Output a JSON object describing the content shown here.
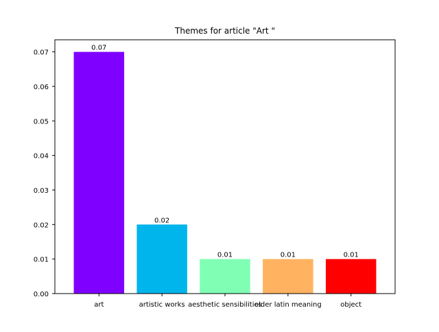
{
  "chart_data": {
    "type": "bar",
    "title": "Themes for article \"Art \"",
    "xlabel": "",
    "ylabel": "",
    "categories": [
      "art",
      "artistic works",
      "aesthetic sensibilities",
      "older latin meaning",
      "object"
    ],
    "values": [
      0.07,
      0.02,
      0.01,
      0.01,
      0.01
    ],
    "value_labels": [
      "0.07",
      "0.02",
      "0.01",
      "0.01",
      "0.01"
    ],
    "colors": [
      "#8000ff",
      "#00b5eb",
      "#80ffb4",
      "#ffb360",
      "#ff0000"
    ],
    "ylim": [
      0,
      0.0735
    ],
    "yticks": [
      0.0,
      0.01,
      0.02,
      0.03,
      0.04,
      0.05,
      0.06,
      0.07
    ],
    "ytick_labels": [
      "0.00",
      "0.01",
      "0.02",
      "0.03",
      "0.04",
      "0.05",
      "0.06",
      "0.07"
    ],
    "grid": false,
    "legend": "none"
  }
}
